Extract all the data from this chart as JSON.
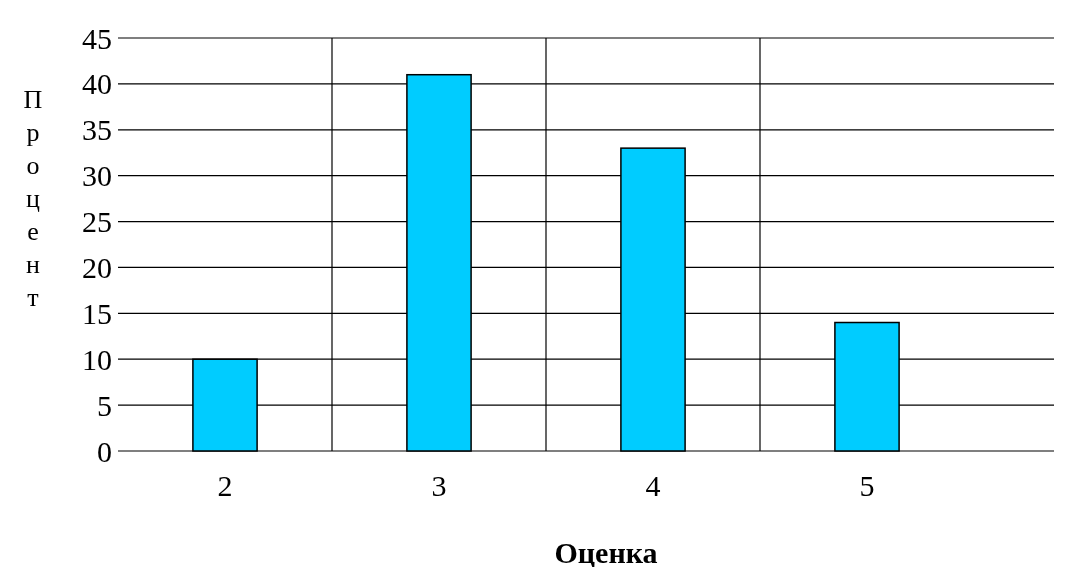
{
  "chart_data": {
    "type": "bar",
    "xlabel": "Оценка",
    "ylabel": "Процент",
    "categories": [
      "2",
      "3",
      "4",
      "5"
    ],
    "values": [
      10,
      41,
      33,
      14
    ],
    "color": "#00ccff",
    "ylim": [
      0,
      45
    ],
    "yticks": [
      0,
      5,
      10,
      15,
      20,
      25,
      30,
      35,
      40,
      45
    ],
    "grid": true
  }
}
